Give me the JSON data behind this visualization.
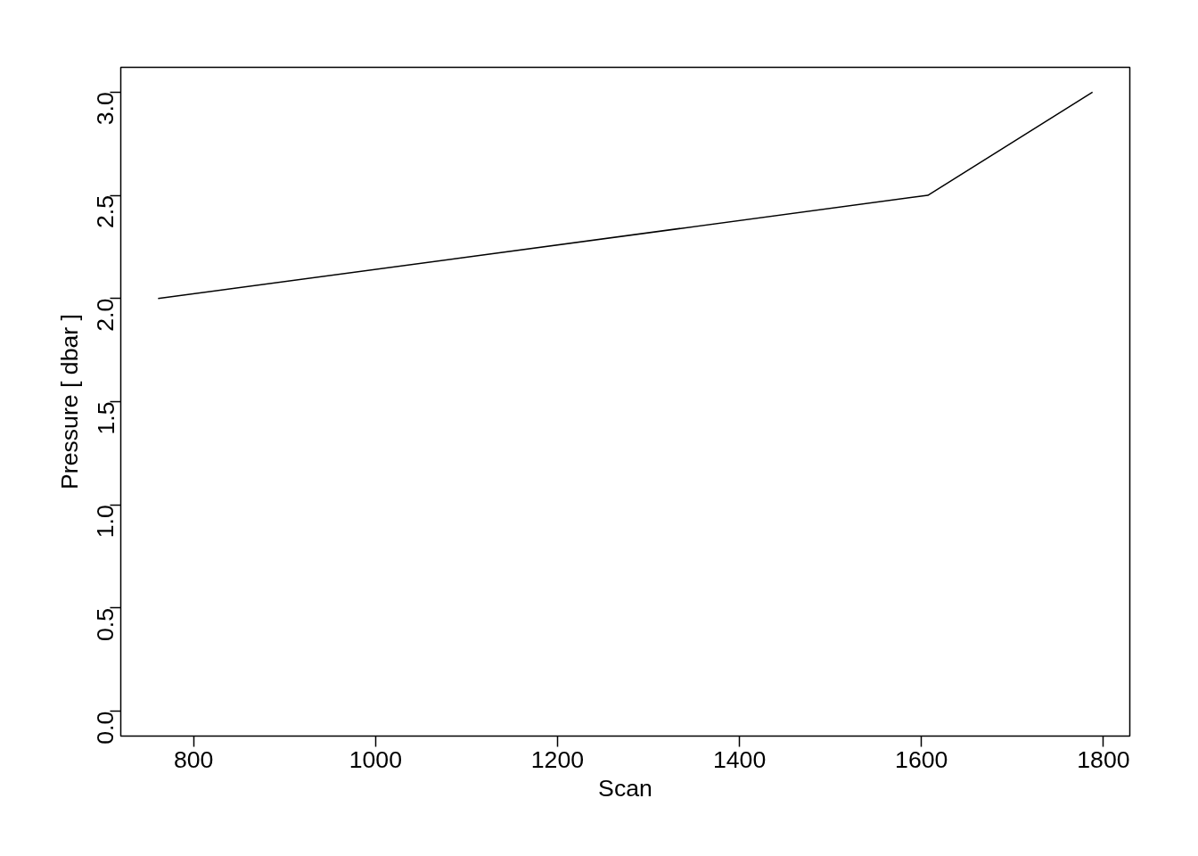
{
  "chart_data": {
    "type": "line",
    "xlabel": "Scan",
    "ylabel": "Pressure [ dbar ]",
    "x": [
      761,
      1607,
      1788
    ],
    "series": [
      {
        "color": "#000000",
        "values": [
          2.0,
          2.5,
          3.0
        ]
      }
    ],
    "xlim": [
      720,
      1829
    ],
    "ylim": [
      -0.12,
      3.12
    ],
    "xticks": [
      800,
      1000,
      1200,
      1400,
      1600,
      1800
    ],
    "yticks": [
      {
        "value": 0,
        "label": "0.0"
      },
      {
        "value": 0.5,
        "label": "0.5"
      },
      {
        "value": 1,
        "label": "1.0"
      },
      {
        "value": 1.5,
        "label": "1.5"
      },
      {
        "value": 2,
        "label": "2.0"
      },
      {
        "value": 2.5,
        "label": "2.5"
      },
      {
        "value": 3,
        "label": "3.0"
      }
    ],
    "grid": false,
    "marker": "none",
    "line_style": "solid"
  }
}
